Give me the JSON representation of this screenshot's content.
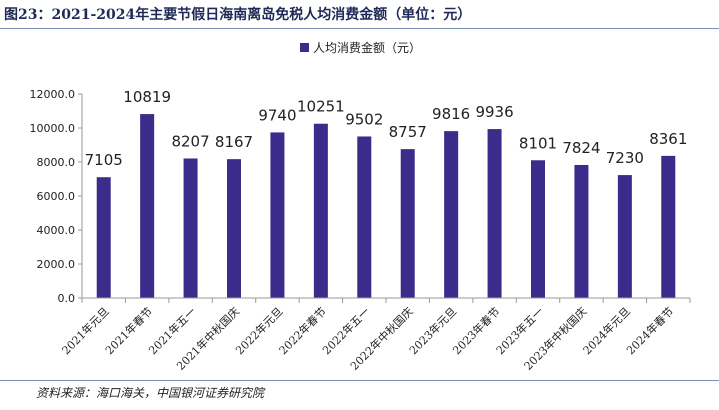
{
  "figure": {
    "title": "图23：2021-2024年主要节假日海南离岛免税人均消费金额（单位：元）",
    "source": "资料来源：海口海关，中国银河证券研究院"
  },
  "chart_data": {
    "type": "bar",
    "title": "",
    "xlabel": "",
    "ylabel": "",
    "categories": [
      "2021年元旦",
      "2021年春节",
      "2021年五一",
      "2021年中秋国庆",
      "2022年元旦",
      "2022年春节",
      "2022年五一",
      "2022年中秋国庆",
      "2023年元旦",
      "2023年春节",
      "2023年五一",
      "2023年中秋国庆",
      "2024年元旦",
      "2024年春节"
    ],
    "series": [
      {
        "name": "人均消费金额（元）",
        "values": [
          7105,
          10819,
          8207,
          8167,
          9740,
          10251,
          9502,
          8757,
          9816,
          9936,
          8101,
          7824,
          7230,
          8361
        ]
      }
    ],
    "yticks": [
      "0.0",
      "2000.0",
      "4000.0",
      "6000.0",
      "8000.0",
      "10000.0",
      "12000.0"
    ],
    "ylim": [
      0,
      12000
    ],
    "grid": false,
    "legend_position": "top-center",
    "colors": {
      "bar": "#3b2b8a",
      "axis": "#999999",
      "text": "#222222"
    }
  }
}
